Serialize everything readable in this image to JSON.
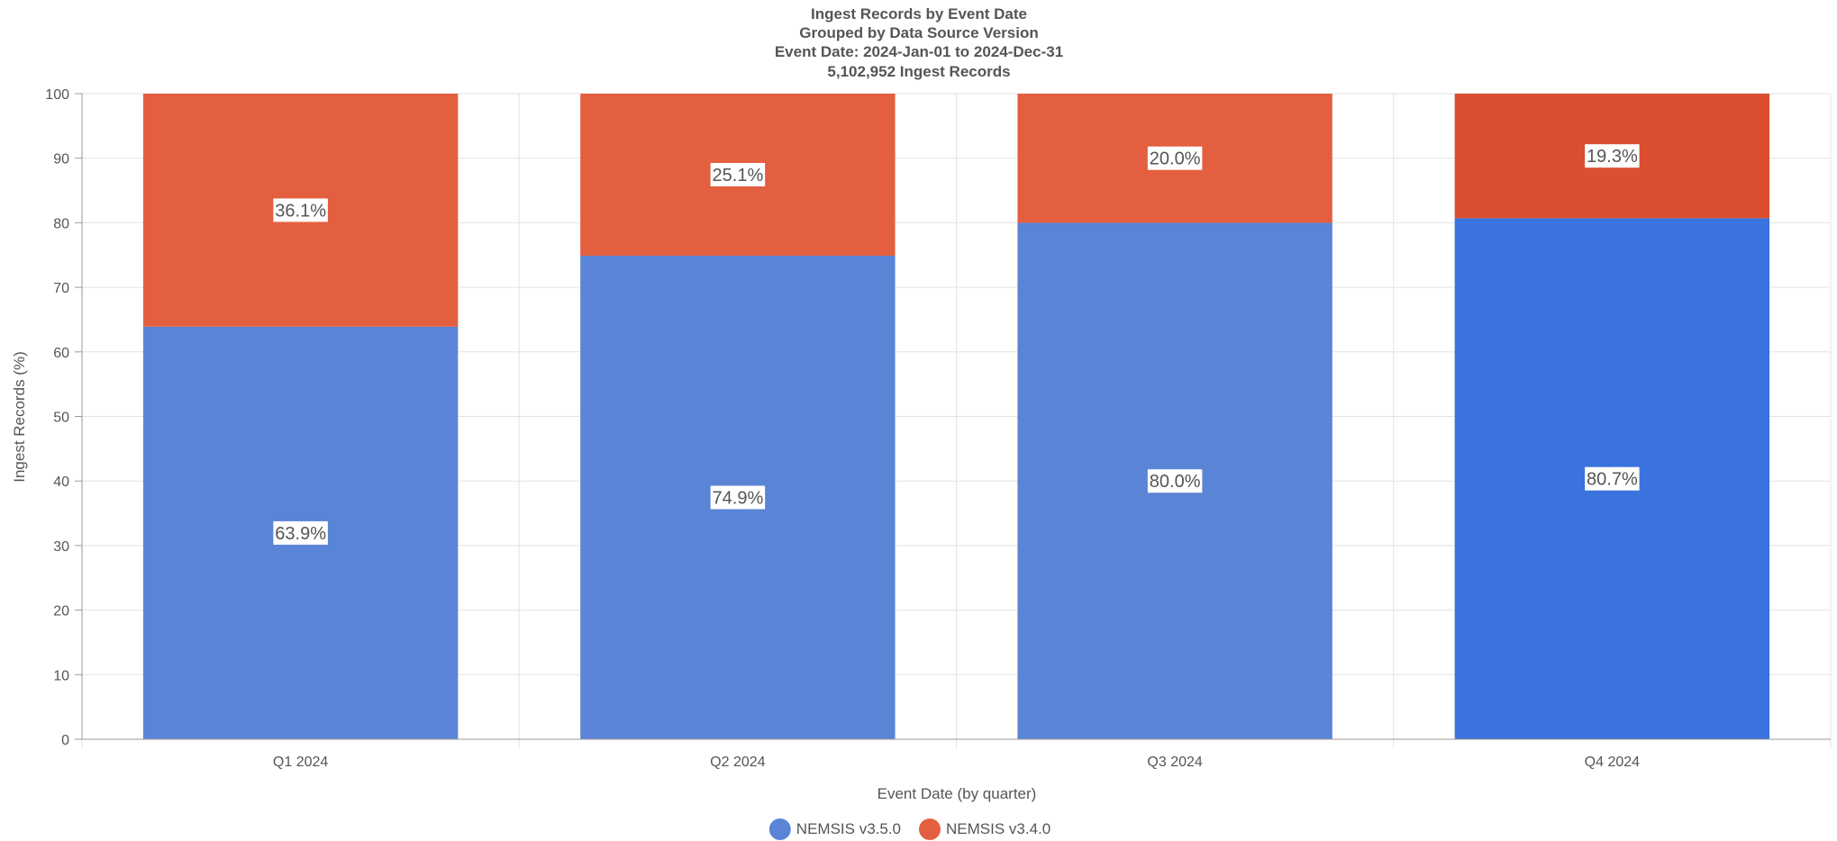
{
  "chart_data": {
    "type": "bar",
    "stacked": true,
    "title_lines": [
      "Ingest Records by Event Date",
      "Grouped by Data Source Version",
      "Event Date: 2024-Jan-01 to 2024-Dec-31",
      "5,102,952 Ingest Records"
    ],
    "xlabel": "Event Date (by quarter)",
    "ylabel": "Ingest Records (%)",
    "ylim": [
      0,
      100
    ],
    "yticks": [
      0,
      10,
      20,
      30,
      40,
      50,
      60,
      70,
      80,
      90,
      100
    ],
    "categories": [
      "Q1 2024",
      "Q2 2024",
      "Q3 2024",
      "Q4 2024"
    ],
    "series": [
      {
        "name": "NEMSIS v3.5.0",
        "color": "#5a84d6",
        "highlight_color": "#3a72de",
        "values": [
          63.9,
          74.9,
          80.0,
          80.7
        ],
        "labels": [
          "63.9%",
          "74.9%",
          "80.0%",
          "80.7%"
        ]
      },
      {
        "name": "NEMSIS v3.4.0",
        "color": "#e45f3f",
        "highlight_color": "#dc4e30",
        "values": [
          36.1,
          25.1,
          20.0,
          19.3
        ],
        "labels": [
          "36.1%",
          "25.1%",
          "20.0%",
          "19.3%"
        ]
      }
    ],
    "highlighted_category": 3,
    "grid": true,
    "legend_position": "bottom-center"
  }
}
